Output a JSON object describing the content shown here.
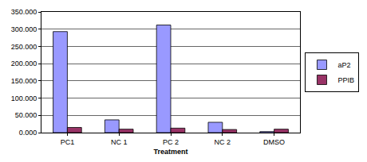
{
  "chart_data": {
    "type": "bar",
    "x_label": "Treatment",
    "categories": [
      "PC1",
      "NC 1",
      "PC 2",
      "NC 2",
      "DMSO"
    ],
    "series": [
      {
        "name": "aP2",
        "color": "#9999ff",
        "values": [
          293,
          37,
          312,
          30,
          3
        ]
      },
      {
        "name": "PPIB",
        "color": "#993366",
        "values": [
          15,
          10,
          13,
          9,
          10
        ]
      }
    ],
    "ylim": [
      0,
      350
    ],
    "yticks": [
      {
        "value": 0,
        "label": "0.000"
      },
      {
        "value": 50,
        "label": "50.000"
      },
      {
        "value": 100,
        "label": "100.000"
      },
      {
        "value": 150,
        "label": "150.000"
      },
      {
        "value": 200,
        "label": "200.000"
      },
      {
        "value": 250,
        "label": "250.000"
      },
      {
        "value": 300,
        "label": "300.000"
      },
      {
        "value": 350,
        "label": "350.000"
      }
    ],
    "grid": true,
    "legend": "right"
  }
}
